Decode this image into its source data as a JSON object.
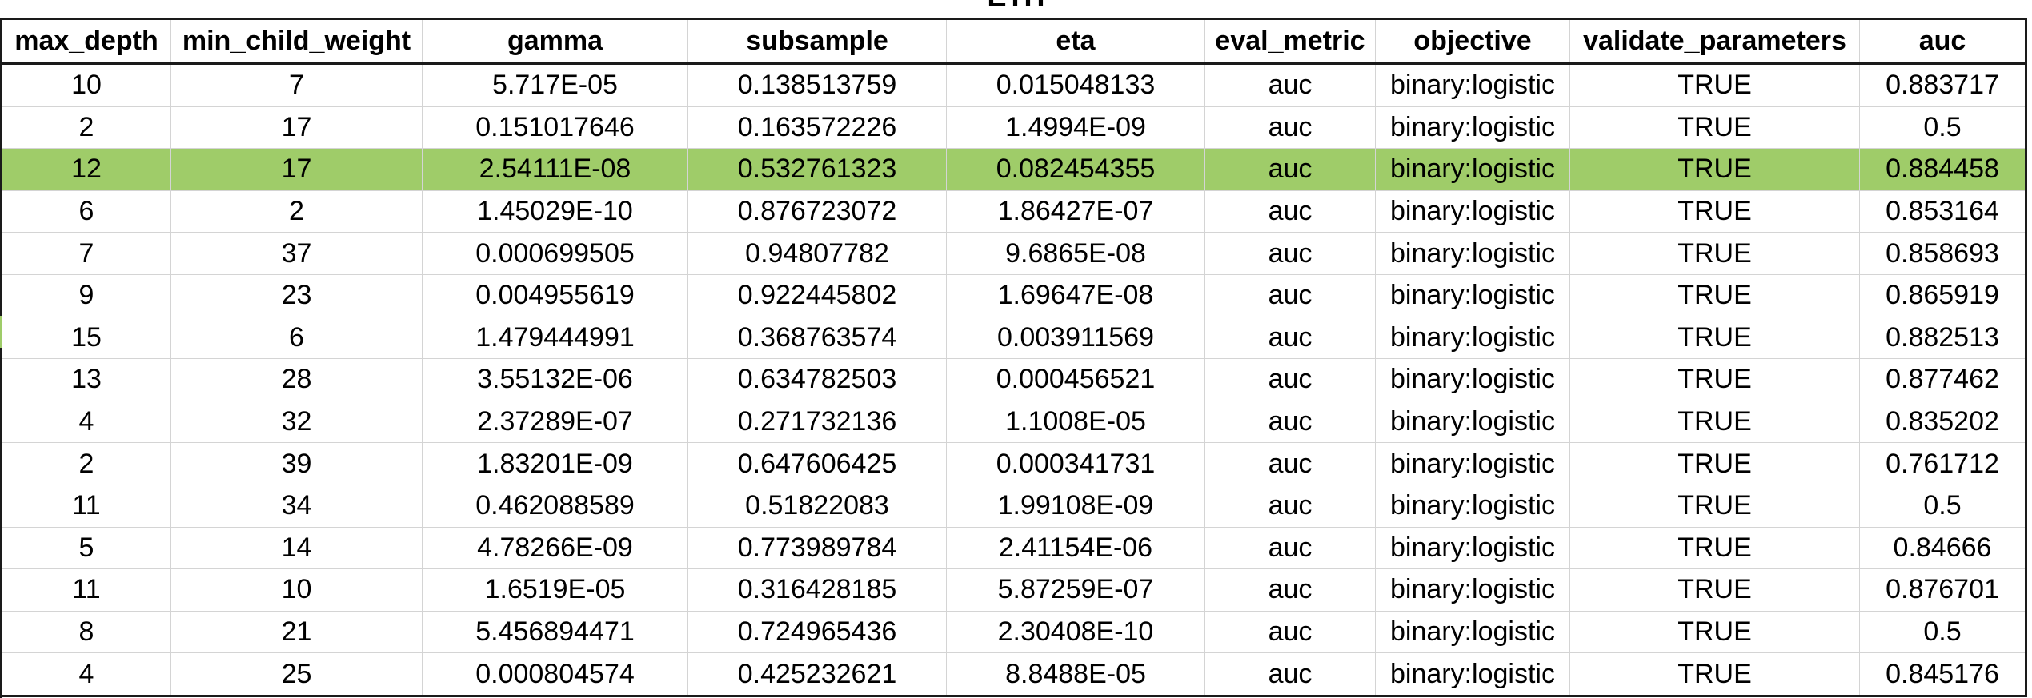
{
  "title": "ETH",
  "columns": [
    "max_depth",
    "min_child_weight",
    "gamma",
    "subsample",
    "eta",
    "eval_metric",
    "objective",
    "validate_parameters",
    "auc"
  ],
  "highlight_row": 2,
  "highlight_color": "#9fcc69",
  "rows": [
    [
      "10",
      "7",
      "5.717E-05",
      "0.138513759",
      "0.015048133",
      "auc",
      "binary:logistic",
      "TRUE",
      "0.883717"
    ],
    [
      "2",
      "17",
      "0.151017646",
      "0.163572226",
      "1.4994E-09",
      "auc",
      "binary:logistic",
      "TRUE",
      "0.5"
    ],
    [
      "12",
      "17",
      "2.54111E-08",
      "0.532761323",
      "0.082454355",
      "auc",
      "binary:logistic",
      "TRUE",
      "0.884458"
    ],
    [
      "6",
      "2",
      "1.45029E-10",
      "0.876723072",
      "1.86427E-07",
      "auc",
      "binary:logistic",
      "TRUE",
      "0.853164"
    ],
    [
      "7",
      "37",
      "0.000699505",
      "0.94807782",
      "9.6865E-08",
      "auc",
      "binary:logistic",
      "TRUE",
      "0.858693"
    ],
    [
      "9",
      "23",
      "0.004955619",
      "0.922445802",
      "1.69647E-08",
      "auc",
      "binary:logistic",
      "TRUE",
      "0.865919"
    ],
    [
      "15",
      "6",
      "1.479444991",
      "0.368763574",
      "0.003911569",
      "auc",
      "binary:logistic",
      "TRUE",
      "0.882513"
    ],
    [
      "13",
      "28",
      "3.55132E-06",
      "0.634782503",
      "0.000456521",
      "auc",
      "binary:logistic",
      "TRUE",
      "0.877462"
    ],
    [
      "4",
      "32",
      "2.37289E-07",
      "0.271732136",
      "1.1008E-05",
      "auc",
      "binary:logistic",
      "TRUE",
      "0.835202"
    ],
    [
      "2",
      "39",
      "1.83201E-09",
      "0.647606425",
      "0.000341731",
      "auc",
      "binary:logistic",
      "TRUE",
      "0.761712"
    ],
    [
      "11",
      "34",
      "0.462088589",
      "0.51822083",
      "1.99108E-09",
      "auc",
      "binary:logistic",
      "TRUE",
      "0.5"
    ],
    [
      "5",
      "14",
      "4.78266E-09",
      "0.773989784",
      "2.41154E-06",
      "auc",
      "binary:logistic",
      "TRUE",
      "0.84666"
    ],
    [
      "11",
      "10",
      "1.6519E-05",
      "0.316428185",
      "5.87259E-07",
      "auc",
      "binary:logistic",
      "TRUE",
      "0.876701"
    ],
    [
      "8",
      "21",
      "5.456894471",
      "0.724965436",
      "2.30408E-10",
      "auc",
      "binary:logistic",
      "TRUE",
      "0.5"
    ],
    [
      "4",
      "25",
      "0.000804574",
      "0.425232621",
      "8.8488E-05",
      "auc",
      "binary:logistic",
      "TRUE",
      "0.845176"
    ]
  ]
}
